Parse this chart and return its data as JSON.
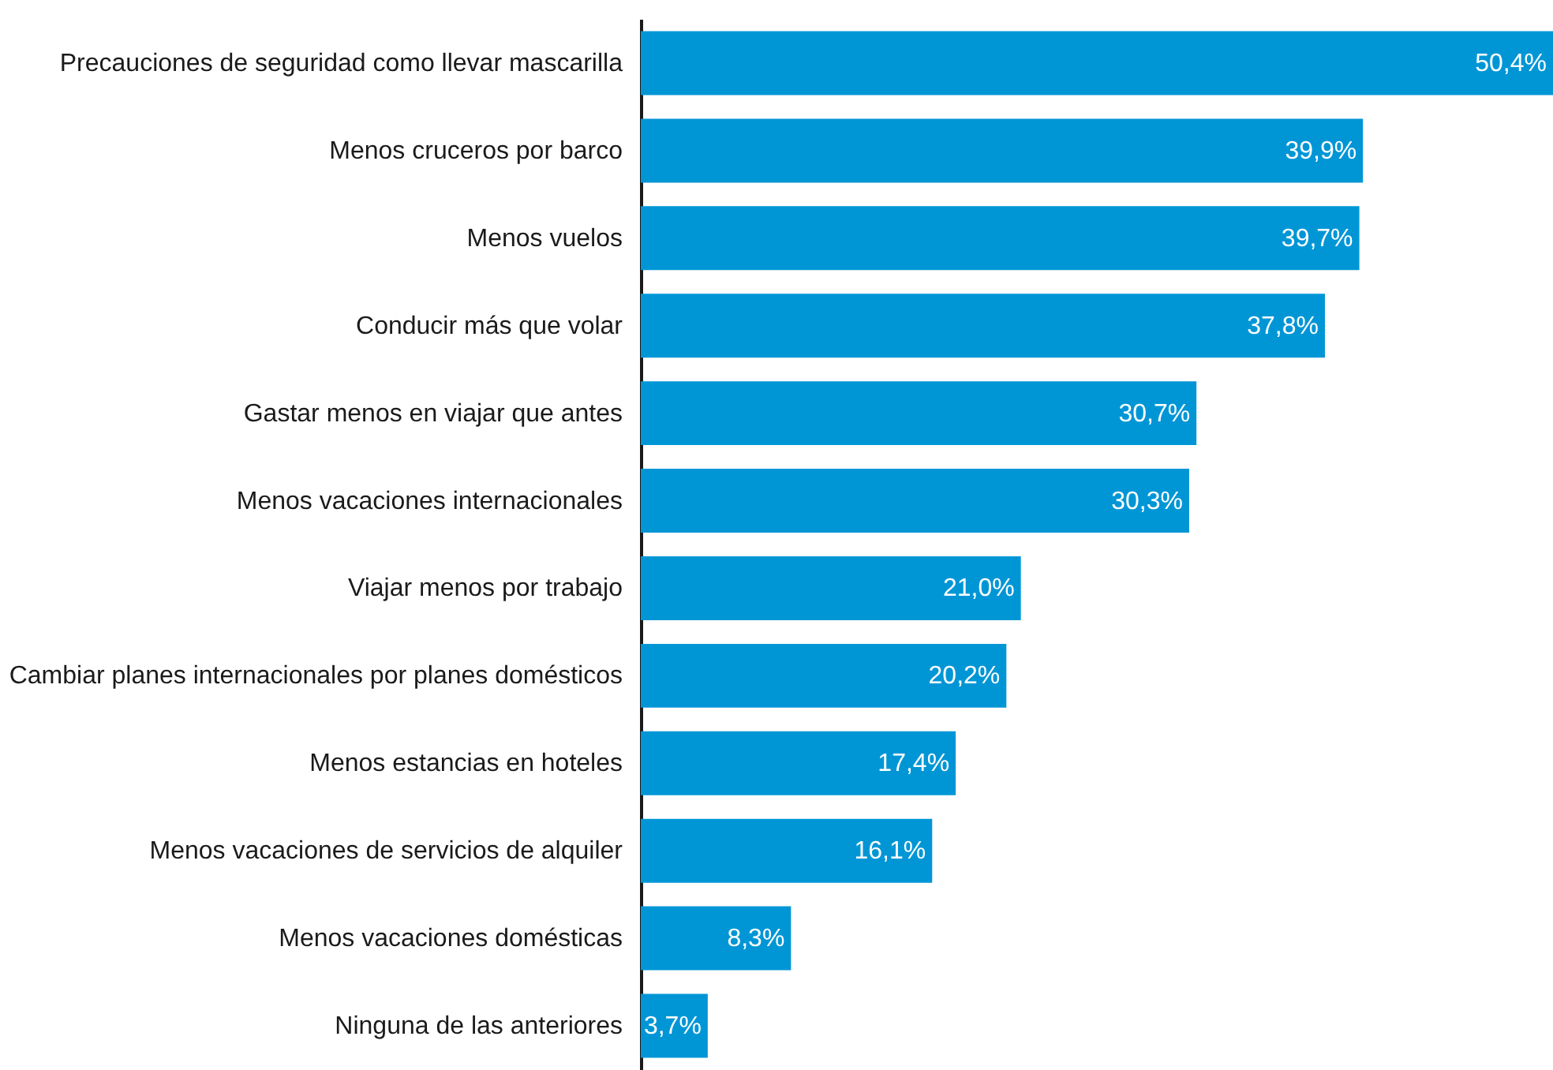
{
  "chart_data": {
    "type": "bar",
    "orientation": "horizontal",
    "categories": [
      "Precauciones de seguridad como llevar mascarilla",
      "Menos cruceros por barco",
      "Menos vuelos",
      "Conducir más que volar",
      "Gastar menos en viajar que antes",
      "Menos vacaciones internacionales",
      "Viajar menos por trabajo",
      "Cambiar planes internacionales por planes domésticos",
      "Menos estancias en hoteles",
      "Menos vacaciones de servicios de alquiler",
      "Menos vacaciones domésticas",
      "Ninguna de las anteriores"
    ],
    "values": [
      50.4,
      39.9,
      39.7,
      37.8,
      30.7,
      30.3,
      21.0,
      20.2,
      17.4,
      16.1,
      8.3,
      3.7
    ],
    "value_labels": [
      "50,4%",
      "39,9%",
      "39,7%",
      "37,8%",
      "30,7%",
      "30,3%",
      "21,0%",
      "20,2%",
      "17,4%",
      "16,1%",
      "8,3%",
      "3,7%"
    ],
    "color": "#0096d6",
    "xlim": [
      0,
      50.4
    ],
    "tick_labels": "y"
  }
}
